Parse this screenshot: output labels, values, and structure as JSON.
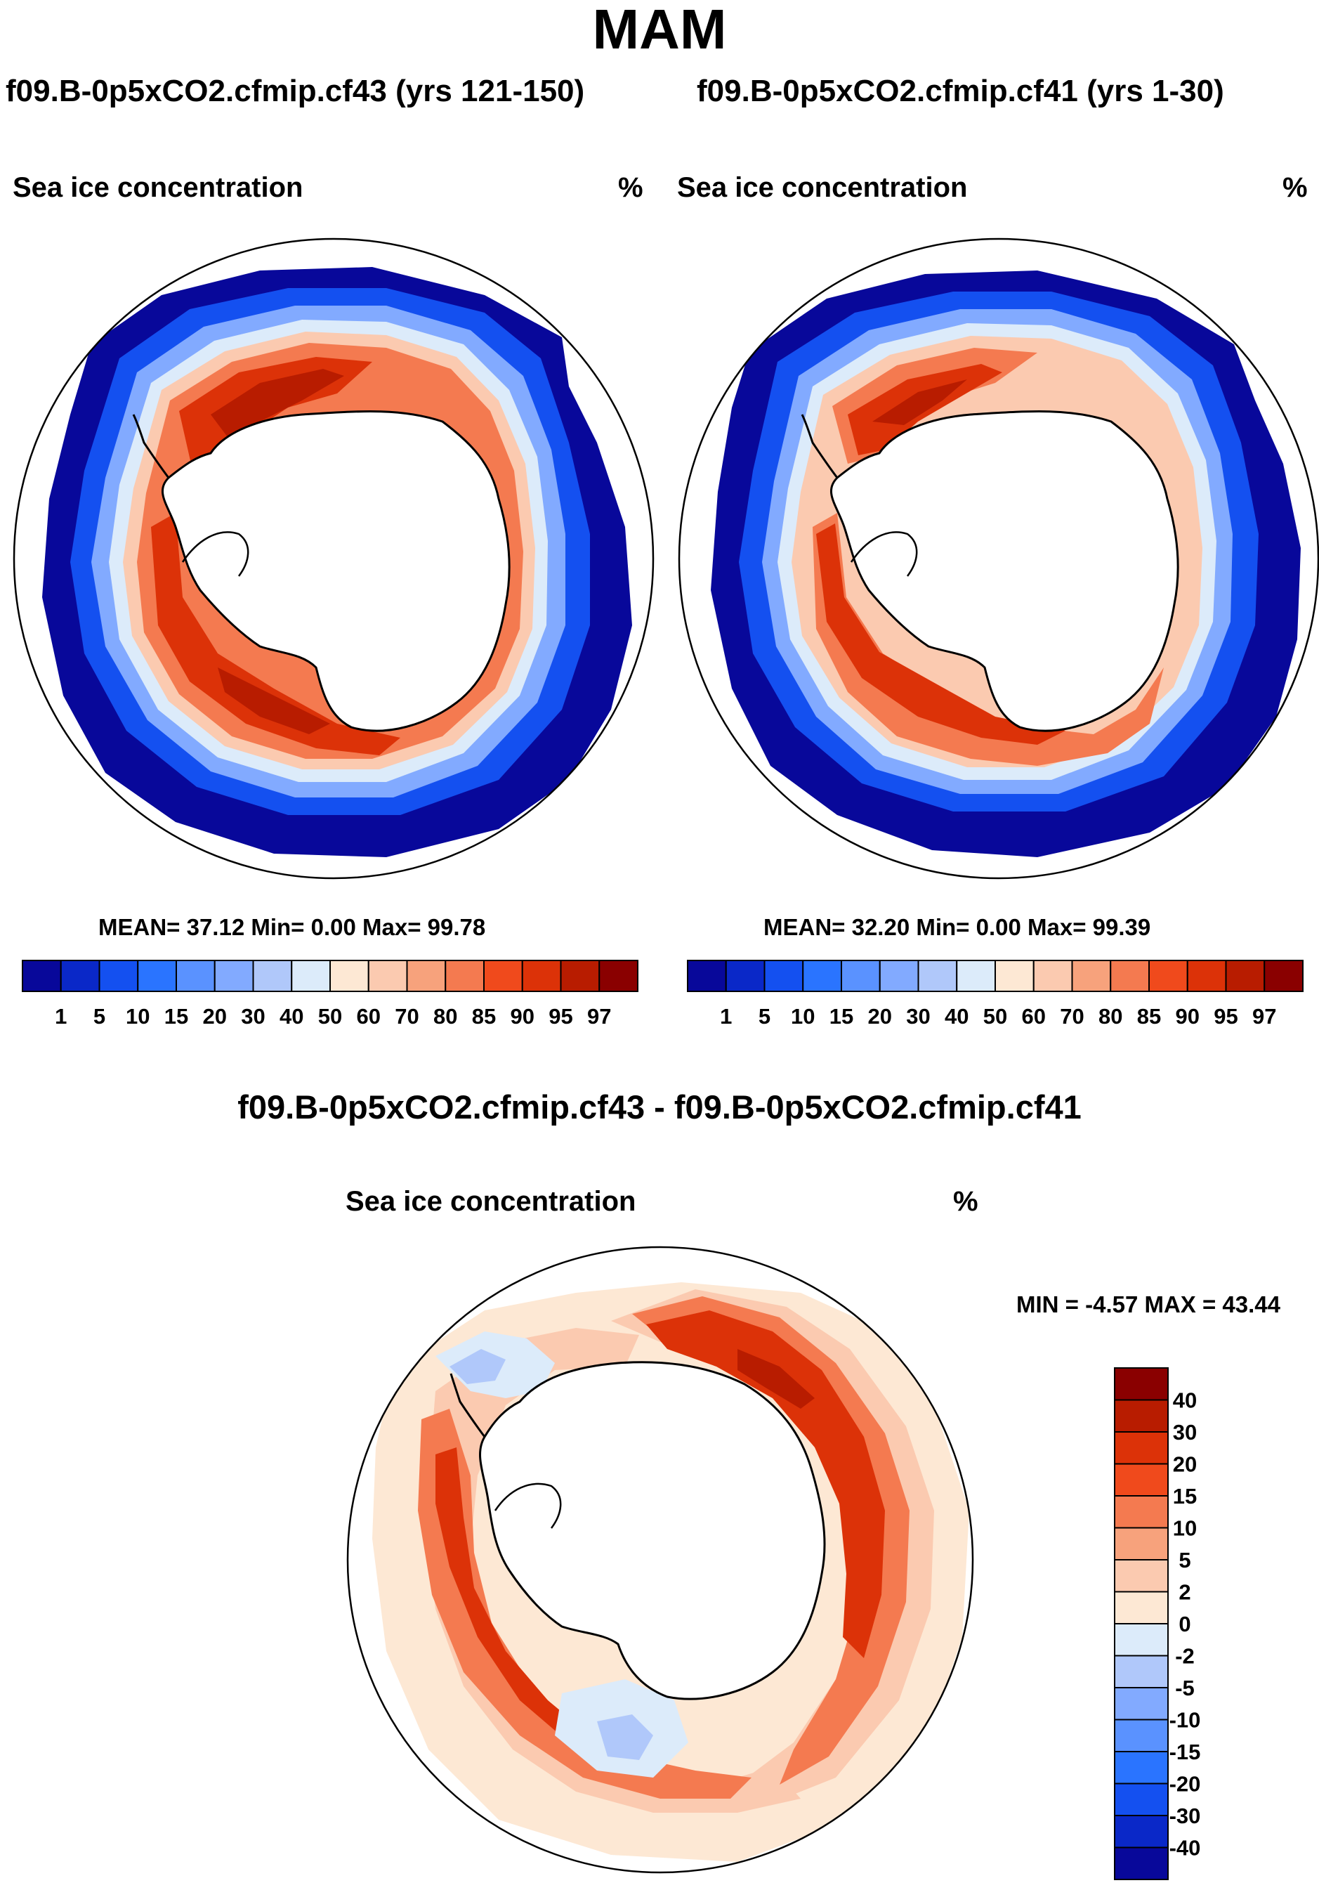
{
  "season": "MAM",
  "diff_title": "f09.B-0p5xCO2.cfmip.cf43 - f09.B-0p5xCO2.cfmip.cf41",
  "colors": {
    "ice_scale": [
      "#08089a",
      "#0a28c8",
      "#1450f0",
      "#2a74ff",
      "#5a92ff",
      "#82aaff",
      "#b0c8fa",
      "#dcebfa",
      "#fde8d4",
      "#fbcab0",
      "#f7a27c",
      "#f47a50",
      "#f04a1c",
      "#dc3208",
      "#b81c00",
      "#8a0000"
    ],
    "diff_scale": [
      "#08089a",
      "#0a28c8",
      "#1450f0",
      "#2a74ff",
      "#5a92ff",
      "#82aaff",
      "#b0c8fa",
      "#dcebfa",
      "#fde8d4",
      "#fbcab0",
      "#f7a27c",
      "#f47a50",
      "#f04a1c",
      "#dc3208",
      "#b81c00",
      "#8a0000"
    ]
  },
  "chart_data": [
    {
      "type": "heatmap",
      "title": "f09.B-0p5xCO2.cfmip.cf43 (yrs 121-150)",
      "variable": "Sea ice concentration",
      "units": "%",
      "projection": "south-polar-stereographic",
      "stats_text": "MEAN=  37.12  Min=   0.00  Max=  99.78",
      "stats": {
        "mean": 37.12,
        "min": 0.0,
        "max": 99.78
      },
      "colorbar_levels": [
        "1",
        "5",
        "10",
        "15",
        "20",
        "30",
        "40",
        "50",
        "60",
        "70",
        "80",
        "85",
        "90",
        "95",
        "97"
      ],
      "legend_position": "bottom"
    },
    {
      "type": "heatmap",
      "title": "f09.B-0p5xCO2.cfmip.cf41 (yrs 1-30)",
      "variable": "Sea ice concentration",
      "units": "%",
      "projection": "south-polar-stereographic",
      "stats_text": "MEAN=  32.20  Min=   0.00  Max=  99.39",
      "stats": {
        "mean": 32.2,
        "min": 0.0,
        "max": 99.39
      },
      "colorbar_levels": [
        "1",
        "5",
        "10",
        "15",
        "20",
        "30",
        "40",
        "50",
        "60",
        "70",
        "80",
        "85",
        "90",
        "95",
        "97"
      ],
      "legend_position": "bottom"
    },
    {
      "type": "heatmap",
      "title": "f09.B-0p5xCO2.cfmip.cf43 - f09.B-0p5xCO2.cfmip.cf41",
      "variable": "Sea ice concentration",
      "units": "%",
      "projection": "south-polar-stereographic",
      "stats_text": "MIN =  -4.57 MAX =  43.44",
      "stats": {
        "min": -4.57,
        "max": 43.44
      },
      "colorbar_levels": [
        "40",
        "30",
        "20",
        "15",
        "10",
        "5",
        "2",
        "0",
        "-2",
        "-5",
        "-10",
        "-15",
        "-20",
        "-30",
        "-40"
      ],
      "legend_position": "right"
    }
  ]
}
